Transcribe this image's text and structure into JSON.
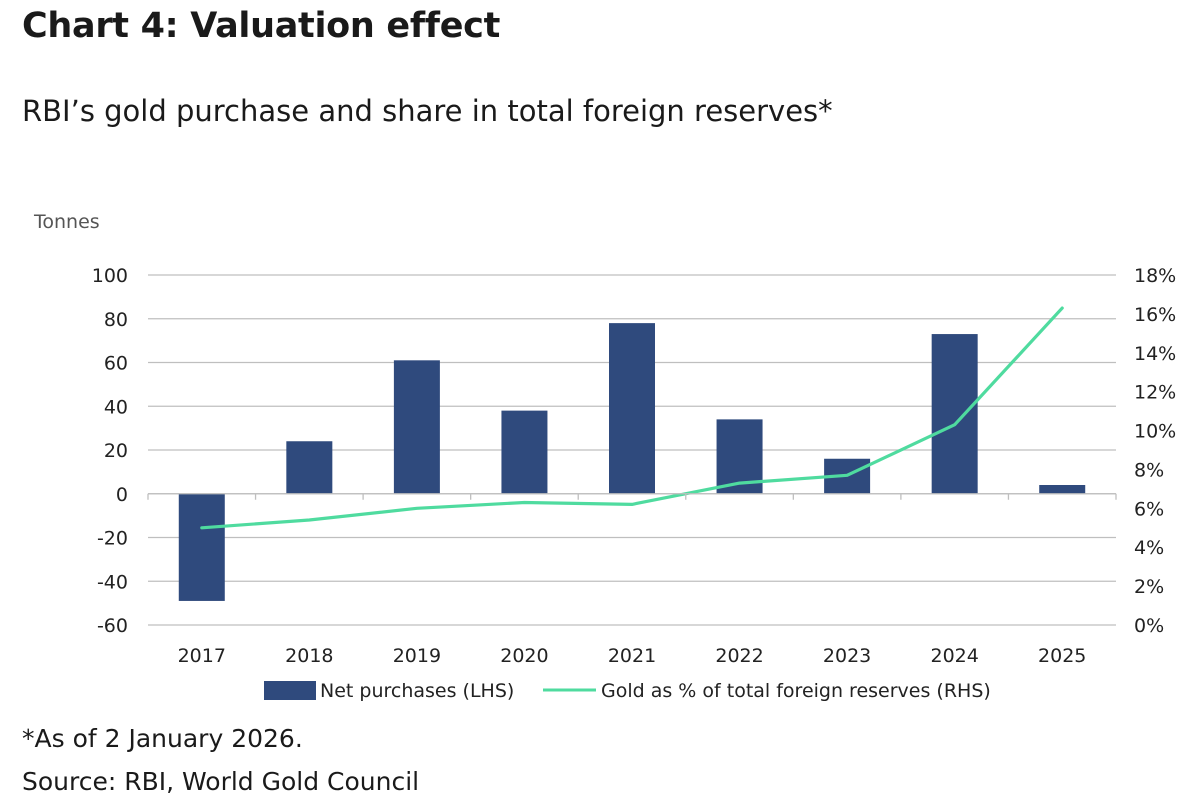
{
  "header": {
    "title": "Chart 4: Valuation effect",
    "subtitle": "RBI’s gold purchase and share in total foreign reserves*"
  },
  "footer": {
    "footnote": "*As of 2 January 2026.",
    "source": "Source: RBI, World Gold Council"
  },
  "chart_data": {
    "type": "bar",
    "categories": [
      "2017",
      "2018",
      "2019",
      "2020",
      "2021",
      "2022",
      "2023",
      "2024",
      "2025"
    ],
    "series": [
      {
        "name": "Net purchases (LHS)",
        "type": "bar",
        "axis": "left",
        "color": "#2f4a7d",
        "values": [
          -49,
          24,
          61,
          38,
          78,
          34,
          16,
          73,
          4
        ]
      },
      {
        "name": "Gold as % of total foreign reserves (RHS)",
        "type": "line",
        "axis": "right",
        "color": "#4fdb9f",
        "values": [
          5.0,
          5.4,
          6.0,
          6.3,
          6.2,
          7.3,
          7.7,
          10.3,
          16.3
        ]
      }
    ],
    "ylabel": "Tonnes",
    "ylim": [
      -60,
      100
    ],
    "yticks": [
      "100",
      "80",
      "60",
      "40",
      "20",
      "0",
      "-20",
      "-40",
      "-60"
    ],
    "y2lim": [
      0,
      18
    ],
    "y2ticks": [
      "18%",
      "16%",
      "14%",
      "12%",
      "10%",
      "8%",
      "6%",
      "4%",
      "2%",
      "0%"
    ],
    "grid": true,
    "legend_position": "bottom"
  }
}
